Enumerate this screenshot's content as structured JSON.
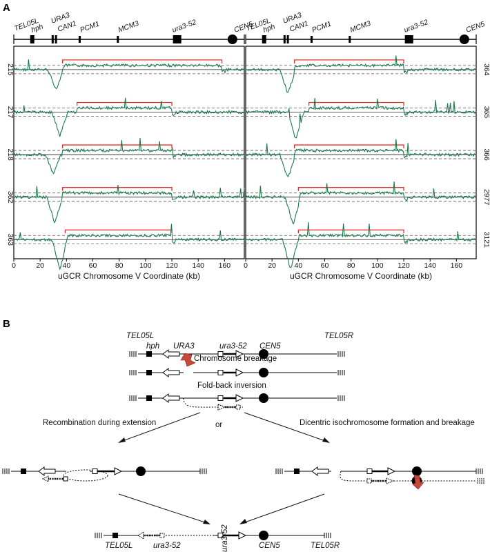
{
  "panel_a": {
    "letter": "A",
    "gene_labels": [
      "TEL05L",
      "hph",
      "URA3",
      "CAN1",
      "PCM1",
      "MCM3",
      "ura3-52",
      "CEN5"
    ],
    "xlabel": "uGCR Chromosome V Coordinate (kb)",
    "x_ticks": [
      "0",
      "20",
      "40",
      "60",
      "80",
      "100",
      "120",
      "140",
      "160"
    ],
    "left_strains": [
      "215",
      "217",
      "218",
      "362",
      "363"
    ],
    "right_strains": [
      "364",
      "365",
      "366",
      "2977",
      "3121"
    ],
    "colors": {
      "trace": "#1a7a4c",
      "bracket": "#e0302a",
      "axis": "#000000"
    }
  },
  "panel_b": {
    "letter": "B",
    "labels": {
      "tel05l": "TEL05L",
      "tel05r": "TEL05R",
      "hph": "hph",
      "ura3": "URA3",
      "ura3_52": "ura3-52",
      "cen5": "CEN5",
      "breakage": "Chromosome breakage",
      "foldback": "Fold-back inversion",
      "recomb": "Recombination during extension",
      "or": "or",
      "dicentric": "Dicentric isochromosome formation and breakage"
    },
    "colors": {
      "arrow_marker": "#c8473b"
    }
  },
  "chart_data": {
    "type": "line",
    "xlabel": "uGCR Chromosome V Coordinate (kb)",
    "xlim": [
      0,
      175
    ],
    "panels": [
      {
        "side": "left",
        "series": [
          {
            "name": "215",
            "dip_center_kb": 32,
            "dip_depth": -1.0,
            "bracket_kb": [
              37,
              158
            ]
          },
          {
            "name": "217",
            "dip_center_kb": 35,
            "dip_depth": -1.2,
            "bracket_kb": [
              48,
              120
            ]
          },
          {
            "name": "218",
            "dip_center_kb": 30,
            "dip_depth": -1.0,
            "bracket_kb": [
              37,
              120
            ]
          },
          {
            "name": "362",
            "dip_center_kb": 31,
            "dip_depth": -1.3,
            "bracket_kb": [
              37,
              120
            ]
          },
          {
            "name": "363",
            "dip_center_kb": 35,
            "dip_depth": -1.5,
            "bracket_kb": [
              39,
              120
            ]
          }
        ]
      },
      {
        "side": "right",
        "series": [
          {
            "name": "364",
            "dip_center_kb": 32,
            "dip_depth": -1.2,
            "bracket_kb": [
              37,
              120
            ]
          },
          {
            "name": "365",
            "dip_center_kb": 38,
            "dip_depth": -1.4,
            "bracket_kb": [
              48,
              120
            ]
          },
          {
            "name": "366",
            "dip_center_kb": 32,
            "dip_depth": -1.2,
            "bracket_kb": [
              37,
              120
            ]
          },
          {
            "name": "2977",
            "dip_center_kb": 36,
            "dip_depth": -1.4,
            "bracket_kb": [
              40,
              120
            ]
          },
          {
            "name": "3121",
            "dip_center_kb": 34,
            "dip_depth": -1.5,
            "bracket_kb": [
              40,
              120
            ]
          }
        ]
      }
    ]
  }
}
